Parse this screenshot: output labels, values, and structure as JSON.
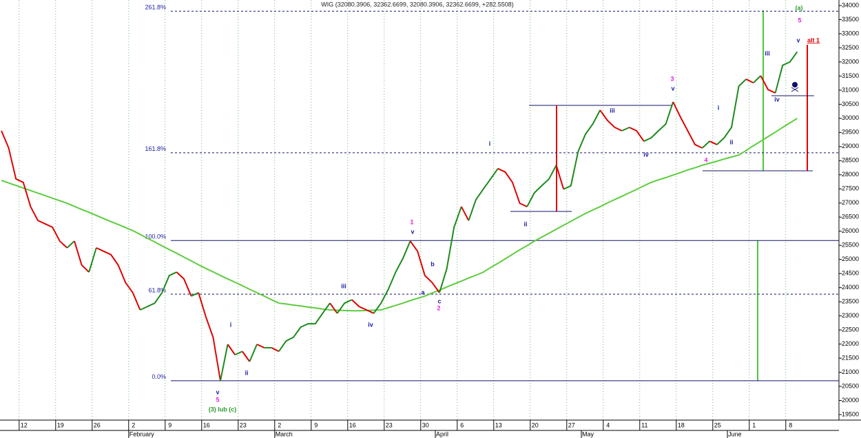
{
  "chart_data": {
    "type": "line",
    "title": "WIG (32080.3906, 32362.6699, 32080.3906, 32362.6699, +282.5508)",
    "categories": [
      null,
      null,
      null,
      "12",
      null,
      null,
      null,
      null,
      "19",
      null,
      null,
      null,
      null,
      "26",
      null,
      null,
      null,
      null,
      "2",
      null,
      null,
      null,
      null,
      "9",
      null,
      null,
      null,
      null,
      "16",
      null,
      null,
      null,
      null,
      "23",
      null,
      null,
      null,
      null,
      "2",
      null,
      null,
      null,
      null,
      "9",
      null,
      null,
      null,
      null,
      "16",
      null,
      null,
      null,
      null,
      "23",
      null,
      null,
      null,
      null,
      "30",
      null,
      null,
      null,
      null,
      "6",
      null,
      null,
      null,
      null,
      "13",
      null,
      null,
      null,
      null,
      "20",
      null,
      null,
      null,
      null,
      "27",
      null,
      null,
      null,
      null,
      "4",
      null,
      null,
      null,
      null,
      "11",
      null,
      null,
      null,
      null,
      "18",
      null,
      null,
      null,
      null,
      "25",
      null,
      null,
      null,
      null,
      "1",
      null,
      null,
      null,
      null,
      "8",
      null
    ],
    "months": [
      null,
      null,
      null,
      null,
      null,
      null,
      null,
      null,
      null,
      null,
      null,
      null,
      null,
      null,
      null,
      null,
      null,
      null,
      "February",
      null,
      null,
      null,
      null,
      null,
      null,
      null,
      null,
      null,
      null,
      null,
      null,
      null,
      null,
      null,
      null,
      null,
      null,
      null,
      "March",
      null,
      null,
      null,
      null,
      null,
      null,
      null,
      null,
      null,
      null,
      null,
      null,
      null,
      null,
      null,
      null,
      null,
      null,
      null,
      null,
      null,
      "April",
      null,
      null,
      null,
      null,
      null,
      null,
      null,
      null,
      null,
      null,
      null,
      null,
      null,
      null,
      null,
      null,
      null,
      null,
      null,
      "May",
      null,
      null,
      null,
      null,
      null,
      null,
      null,
      null,
      null,
      null,
      null,
      null,
      null,
      null,
      null,
      null,
      null,
      null,
      null,
      "June",
      null,
      null,
      null,
      null,
      null,
      null,
      null,
      null,
      null
    ],
    "series": [
      {
        "up_color": "#1a8a1a",
        "down_color": "#e00000",
        "values": [
          29560,
          28950,
          27850,
          27730,
          26870,
          26380,
          26260,
          26140,
          25650,
          25410,
          25650,
          24800,
          24550,
          25410,
          25290,
          25170,
          24800,
          24180,
          23820,
          23210,
          23330,
          23450,
          23820,
          24430,
          24550,
          24310,
          23700,
          23820,
          22970,
          22240,
          20700,
          21990,
          21620,
          21740,
          21380,
          21990,
          21870,
          21870,
          21740,
          22110,
          22240,
          22600,
          22720,
          22720,
          23090,
          23450,
          23090,
          23450,
          23570,
          23330,
          23210,
          23090,
          23450,
          23940,
          24550,
          25040,
          25650,
          25290,
          24430,
          24180,
          23820,
          24670,
          26140,
          26870,
          26380,
          27120,
          27490,
          27850,
          28220,
          28100,
          27730,
          26990,
          26870,
          27360,
          27610,
          27850,
          28340,
          27490,
          27610,
          28830,
          29440,
          29800,
          30290,
          29930,
          29680,
          29560,
          29680,
          29560,
          29190,
          29310,
          29560,
          29800,
          30580,
          30050,
          29560,
          29070,
          28950,
          29190,
          29070,
          29310,
          29680,
          31140,
          31390,
          31260,
          31510,
          31020,
          30900,
          31880,
          32000,
          32360
        ]
      },
      {
        "color": "#5ccc3c",
        "values": [
          27800,
          27710,
          27620,
          27530,
          27440,
          27350,
          27260,
          27170,
          27080,
          26990,
          26880,
          26770,
          26670,
          26560,
          26450,
          26340,
          26240,
          26130,
          26020,
          25890,
          25750,
          25620,
          25480,
          25350,
          25220,
          25080,
          24950,
          24810,
          24680,
          24560,
          24430,
          24310,
          24190,
          24070,
          23940,
          23820,
          23700,
          23570,
          23450,
          23420,
          23380,
          23350,
          23310,
          23280,
          23240,
          23210,
          23200,
          23190,
          23180,
          23180,
          23190,
          23200,
          23210,
          23290,
          23370,
          23450,
          23540,
          23620,
          23700,
          23810,
          23910,
          24020,
          24130,
          24230,
          24340,
          24440,
          24550,
          24710,
          24860,
          25020,
          25180,
          25340,
          25490,
          25650,
          25790,
          25930,
          26070,
          26210,
          26350,
          26490,
          26630,
          26750,
          26870,
          27000,
          27120,
          27240,
          27360,
          27480,
          27610,
          27730,
          27820,
          27900,
          27990,
          28080,
          28170,
          28250,
          28340,
          28410,
          28480,
          28560,
          28630,
          28700,
          28860,
          29030,
          29190,
          29350,
          29510,
          29680,
          29840,
          30000
        ]
      }
    ],
    "ylim": [
      19500,
      34000
    ],
    "yticks": [
      19500,
      20000,
      20500,
      21000,
      21500,
      22000,
      22500,
      23000,
      23500,
      24000,
      24500,
      25000,
      25500,
      26000,
      26500,
      27000,
      27500,
      28000,
      28500,
      29000,
      29500,
      30000,
      30500,
      31000,
      31500,
      32000,
      32500,
      33000,
      33500,
      34000
    ],
    "xgrid": true,
    "levels": [
      {
        "label": "261.8%",
        "value": 33800,
        "dashed": true
      },
      {
        "label": "161.8%",
        "value": 28780,
        "dashed": true
      },
      {
        "label": "100.0%",
        "value": 25670,
        "dashed": false
      },
      {
        "label": "61.8%",
        "value": 23770,
        "dashed": true
      },
      {
        "label": "0.0%",
        "value": 20700,
        "dashed": false
      }
    ],
    "annotations": [
      {
        "text": "v",
        "color": "#1a1aa0"
      },
      {
        "text": "5",
        "color": "#e020e0"
      },
      {
        "text": "(3) lub (c)",
        "color": "#2a9a2a"
      },
      {
        "text": "i",
        "color": "#1a1aa0"
      },
      {
        "text": "ii",
        "color": "#1a1aa0"
      },
      {
        "text": "iii",
        "color": "#1a1aa0"
      },
      {
        "text": "iv",
        "color": "#1a1aa0"
      },
      {
        "text": "1",
        "color": "#e020e0"
      },
      {
        "text": "v",
        "color": "#1a1aa0"
      },
      {
        "text": "b",
        "color": "#1a1aa0"
      },
      {
        "text": "a",
        "color": "#1a1aa0"
      },
      {
        "text": "c",
        "color": "#1a1aa0"
      },
      {
        "text": "2",
        "color": "#e020e0"
      },
      {
        "text": "i",
        "color": "#1a1aa0"
      },
      {
        "text": "ii",
        "color": "#1a1aa0"
      },
      {
        "text": "iii",
        "color": "#1a1aa0"
      },
      {
        "text": "iv",
        "color": "#1a1aa0"
      },
      {
        "text": "3",
        "color": "#e020e0"
      },
      {
        "text": "v",
        "color": "#1a1aa0"
      },
      {
        "text": "4",
        "color": "#e020e0"
      },
      {
        "text": "i",
        "color": "#1a1aa0"
      },
      {
        "text": "ii",
        "color": "#1a1aa0"
      },
      {
        "text": "iii",
        "color": "#1a1aa0"
      },
      {
        "text": "iv",
        "color": "#1a1aa0"
      },
      {
        "text": "(a)",
        "color": "#2a9a2a"
      },
      {
        "text": "5",
        "color": "#e020e0"
      },
      {
        "text": "v",
        "color": "#1a1aa0"
      },
      {
        "text": "alt 1",
        "color": "#e00000"
      }
    ]
  }
}
